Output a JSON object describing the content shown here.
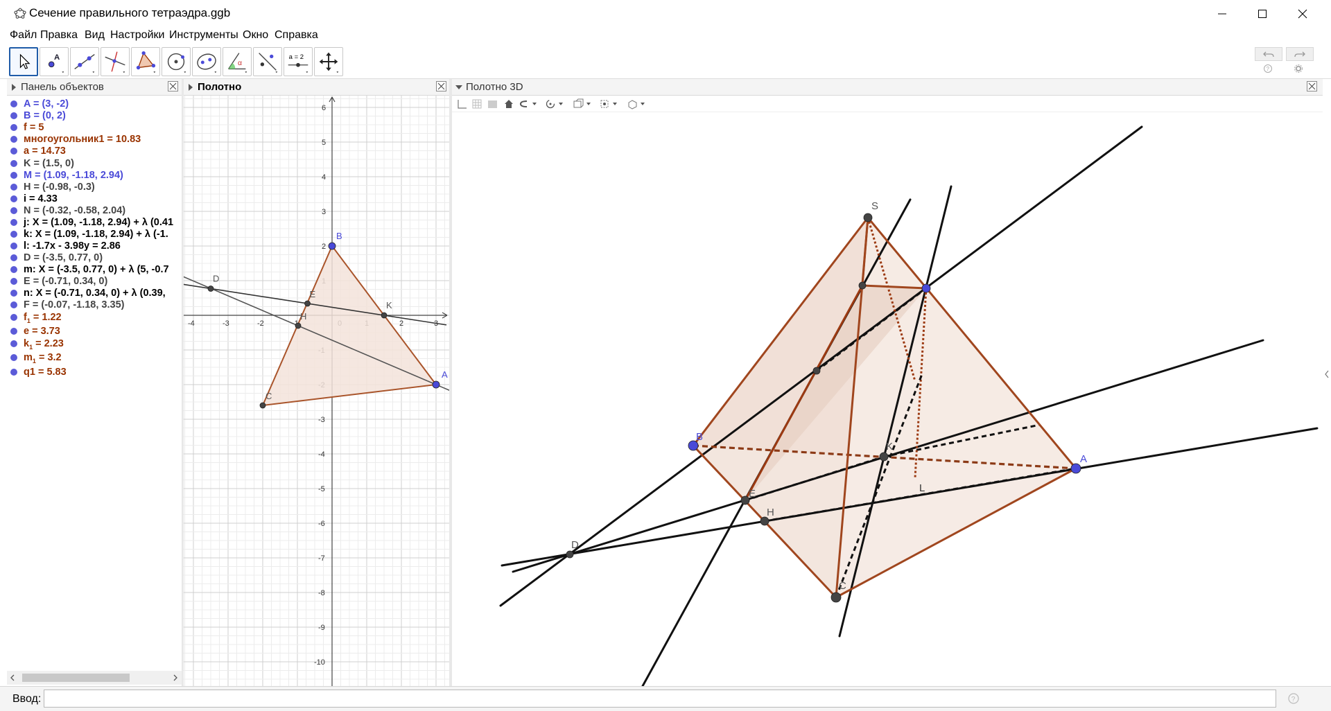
{
  "window": {
    "title": "Сечение правильного тетраэдра.ggb"
  },
  "menu": [
    "Файл",
    "Правка",
    "Вид",
    "Настройки",
    "Инструменты",
    "Окно",
    "Справка"
  ],
  "toolbar": {
    "tools": [
      {
        "name": "move-tool",
        "active": true
      },
      {
        "name": "point-tool"
      },
      {
        "name": "line-tool"
      },
      {
        "name": "perpendicular-line-tool"
      },
      {
        "name": "polygon-tool"
      },
      {
        "name": "circle-tool"
      },
      {
        "name": "ellipse-tool"
      },
      {
        "name": "angle-tool"
      },
      {
        "name": "reflect-tool"
      },
      {
        "name": "slider-tool",
        "label": "a = 2"
      },
      {
        "name": "move-graphics-view-tool"
      }
    ]
  },
  "panels": {
    "algebra_title": "Панель объектов",
    "graphics_title": "Полотно",
    "graphics3d_title": "Полотно 3D"
  },
  "colors": {
    "blue": "#4a4ad8",
    "brown": "#993300",
    "black": "#222222",
    "polygon_fill": "#f3e3da",
    "polygon_stroke": "#a9542a"
  },
  "algebra": [
    {
      "text": "A = (3, -2)",
      "color": "#4a4ad8"
    },
    {
      "text": "B = (0, 2)",
      "color": "#4a4ad8"
    },
    {
      "text": "f = 5",
      "color": "#993300"
    },
    {
      "text": "многоугольник1 = 10.83",
      "color": "#993300"
    },
    {
      "text": "a = 14.73",
      "color": "#993300"
    },
    {
      "text": "K = (1.5, 0)",
      "color": "#444444"
    },
    {
      "text": "M = (1.09, -1.18, 2.94)",
      "color": "#4a4ad8"
    },
    {
      "text": "H = (-0.98, -0.3)",
      "color": "#444444"
    },
    {
      "text": "i = 4.33",
      "color": "#000000"
    },
    {
      "text": "N = (-0.32, -0.58, 2.04)",
      "color": "#444444"
    },
    {
      "text": "j: X = (1.09, -1.18, 2.94) + λ (0.41",
      "color": "#000000"
    },
    {
      "text": "k: X = (1.09, -1.18, 2.94) + λ (-1.",
      "color": "#000000"
    },
    {
      "text": "l: -1.7x - 3.98y = 2.86",
      "color": "#000000"
    },
    {
      "text": "D = (-3.5, 0.77, 0)",
      "color": "#444444"
    },
    {
      "text": "m: X = (-3.5, 0.77, 0) + λ (5, -0.7",
      "color": "#000000"
    },
    {
      "text": "E = (-0.71, 0.34, 0)",
      "color": "#444444"
    },
    {
      "text": "n: X = (-0.71, 0.34, 0) + λ (0.39,",
      "color": "#000000"
    },
    {
      "text": "F = (-0.07, -1.18, 3.35)",
      "color": "#444444"
    },
    {
      "text": "f",
      "sub": "1",
      "rest": " = 1.22",
      "color": "#993300"
    },
    {
      "text": "e = 3.73",
      "color": "#993300"
    },
    {
      "text": "k",
      "sub": "1",
      "rest": " = 2.23",
      "color": "#993300"
    },
    {
      "text": "m",
      "sub": "1",
      "rest": " = 3.2",
      "color": "#993300"
    },
    {
      "text": "q1 = 5.83",
      "color": "#993300"
    }
  ],
  "graphics2d": {
    "x_ticks": [
      "-4",
      "-3",
      "-2",
      "-1",
      "0",
      "1",
      "2",
      "3"
    ],
    "y_ticks_pos": [
      "6",
      "5",
      "4",
      "3",
      "2",
      "1"
    ],
    "y_ticks_neg": [
      "-1",
      "-2",
      "-3",
      "-4",
      "-5",
      "-6",
      "-7",
      "-8",
      "-9",
      "-10"
    ],
    "points": {
      "A": "A",
      "B": "B",
      "C": "C",
      "D": "D",
      "E": "E",
      "H": "H",
      "K": "K"
    }
  },
  "graphics3d": {
    "labels": {
      "S": "S",
      "A": "A",
      "B": "B",
      "C": "C",
      "D": "D",
      "E": "E",
      "H": "H",
      "K": "K",
      "L": "L"
    }
  },
  "input": {
    "label": "Ввод:",
    "value": "",
    "placeholder": ""
  }
}
